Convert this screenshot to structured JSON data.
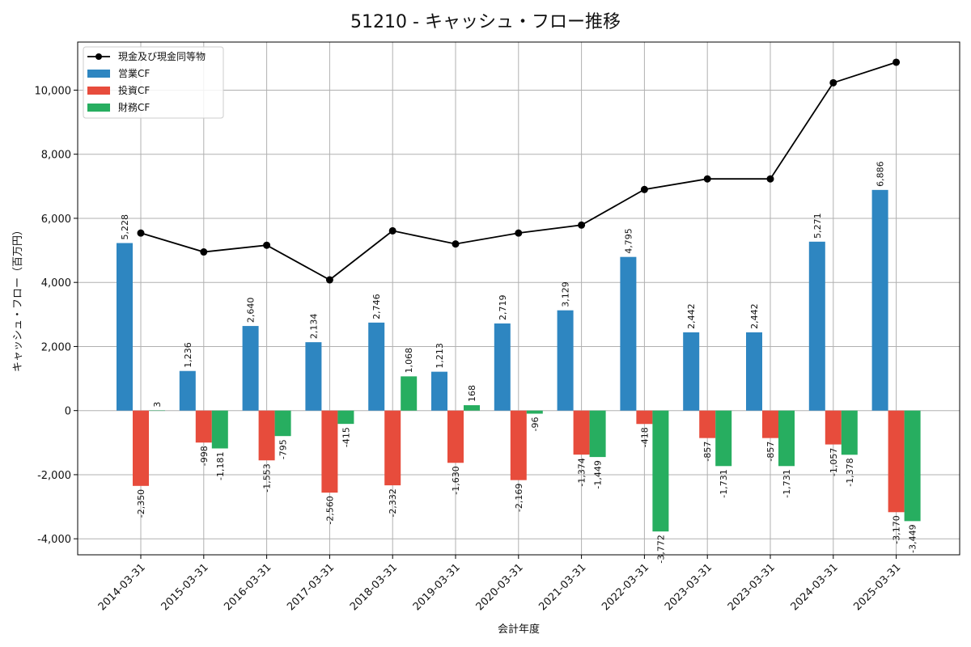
{
  "chart_data": {
    "type": "bar",
    "title": "51210 - キャッシュ・フロー推移",
    "xlabel": "会計年度",
    "ylabel": "キャッシュ・フロー（百万円）",
    "ylim": [
      -4500,
      11500
    ],
    "yticks": [
      -4000,
      -2000,
      0,
      2000,
      4000,
      6000,
      8000,
      10000
    ],
    "ytick_labels": [
      "-4,000",
      "-2,000",
      "0",
      "2,000",
      "4,000",
      "6,000",
      "8,000",
      "10,000"
    ],
    "grid": true,
    "legend_position": "top-left",
    "categories": [
      "2014-03-31",
      "2015-03-31",
      "2016-03-31",
      "2017-03-31",
      "2018-03-31",
      "2019-03-31",
      "2020-03-31",
      "2021-03-31",
      "2022-03-31",
      "2023-03-31",
      "2023-03-31",
      "2024-03-31",
      "2025-03-31"
    ],
    "series": [
      {
        "name": "営業CF",
        "kind": "bar",
        "color": "#2e86c1",
        "values": [
          5228,
          1236,
          2640,
          2134,
          2746,
          1213,
          2719,
          3129,
          4795,
          2442,
          2442,
          5271,
          6886
        ],
        "labels": [
          "5,228",
          "1,236",
          "2,640",
          "2,134",
          "2,746",
          "1,213",
          "2,719",
          "3,129",
          "4,795",
          "2,442",
          "2,442",
          "5,271",
          "6,886"
        ]
      },
      {
        "name": "投資CF",
        "kind": "bar",
        "color": "#e74c3c",
        "values": [
          -2350,
          -998,
          -1553,
          -2560,
          -2332,
          -1630,
          -2169,
          -1374,
          -418,
          -857,
          -857,
          -1057,
          -3170
        ],
        "labels": [
          "-2,350",
          "-998",
          "-1,553",
          "-2,560",
          "-2,332",
          "-1,630",
          "-2,169",
          "-1,374",
          "-418",
          "-857",
          "-857",
          "-1,057",
          "-3,170"
        ]
      },
      {
        "name": "財務CF",
        "kind": "bar",
        "color": "#27ae60",
        "values": [
          3,
          -1181,
          -795,
          -415,
          1068,
          168,
          -96,
          -1449,
          -3772,
          -1731,
          -1731,
          -1378,
          -3449
        ],
        "labels": [
          "3",
          "-1,181",
          "-795",
          "-415",
          "1,068",
          "168",
          "-96",
          "-1,449",
          "-3,772",
          "-1,731",
          "-1,731",
          "-1,378",
          "-3,449"
        ]
      },
      {
        "name": "現金及び現金同等物",
        "kind": "line",
        "color": "#000000",
        "values": [
          5540,
          4950,
          5160,
          4080,
          5610,
          5200,
          5540,
          5790,
          6900,
          7230,
          7230,
          10230,
          10870
        ]
      }
    ]
  }
}
